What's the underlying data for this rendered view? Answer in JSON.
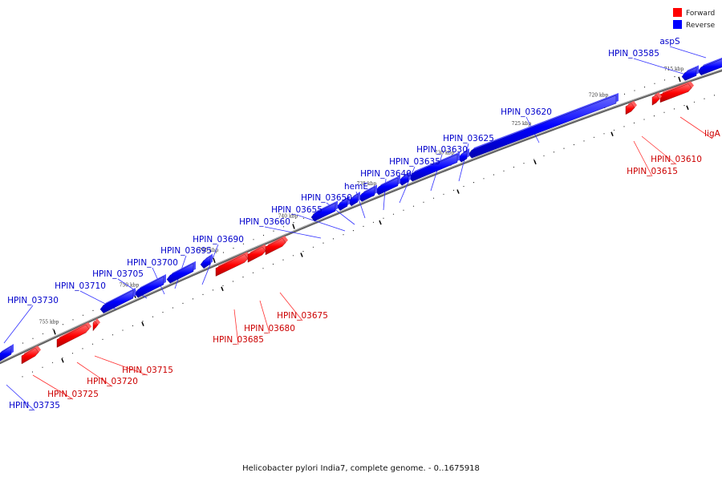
{
  "colors": {
    "forward": "#ff0000",
    "reverse": "#0000ff",
    "forward_label": "#cc0000",
    "reverse_label": "#0000cc",
    "backbone": "#808080",
    "ticks": "#000000"
  },
  "legend": {
    "forward": "Forward",
    "reverse": "Reverse"
  },
  "caption": "Helicobacter pylori India7, complete genome. - 0..1675918",
  "scale_labels": [
    "715 kbp",
    "720 kbp",
    "725 kbp",
    "730 kbp",
    "735 kbp",
    "740 kbp",
    "745 kbp",
    "750 kbp",
    "755 kbp"
  ],
  "reverse_genes": [
    "aspS",
    "HPIN_03585",
    "HPIN_03620",
    "HPIN_03625",
    "HPIN_03630",
    "HPIN_03635",
    "HPIN_03640",
    "hemE",
    "HPIN_03650",
    "HPIN_03655",
    "HPIN_03660",
    "HPIN_03690",
    "HPIN_03695",
    "HPIN_03700",
    "HPIN_03705",
    "HPIN_03710",
    "HPIN_03730",
    "HPIN_03735"
  ],
  "forward_genes": [
    "ligA",
    "HPIN_03610",
    "HPIN_03615",
    "HPIN_03675",
    "HPIN_03680",
    "HPIN_03685",
    "HPIN_03715",
    "HPIN_03720",
    "HPIN_03725"
  ]
}
